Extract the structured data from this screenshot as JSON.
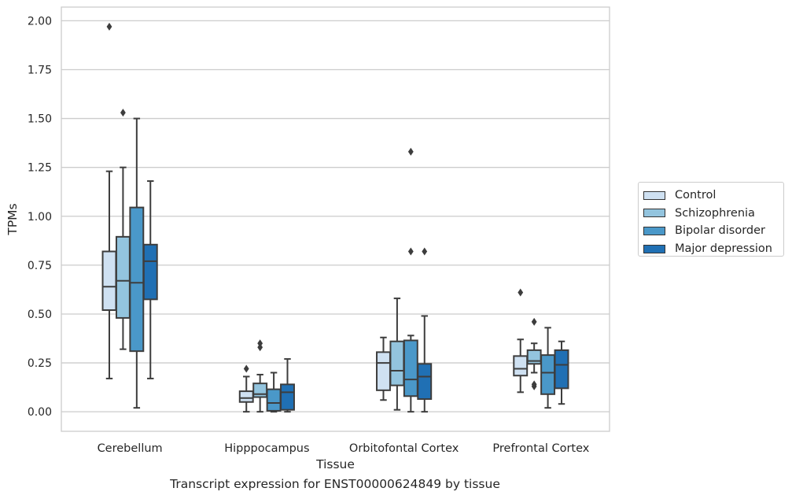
{
  "chart_data": {
    "type": "box",
    "xlabel": "Tissue",
    "ylabel": "TPMs",
    "ylim": [
      -0.1,
      2.07
    ],
    "yticks": [
      0.0,
      0.25,
      0.5,
      0.75,
      1.0,
      1.25,
      1.5,
      1.75,
      2.0
    ],
    "ytick_labels": [
      "0.00",
      "0.25",
      "0.50",
      "0.75",
      "1.00",
      "1.25",
      "1.50",
      "1.75",
      "2.00"
    ],
    "grid": "horizontal",
    "legend_position": "right",
    "categories": [
      "Cerebellum",
      "Hipppocampus",
      "Orbitofontal Cortex",
      "Prefrontal Cortex"
    ],
    "series": [
      {
        "name": "Control",
        "color": "#cfe1f2",
        "boxes": [
          {
            "whislo": 0.17,
            "q1": 0.52,
            "med": 0.64,
            "q3": 0.82,
            "whishi": 1.23,
            "fliers": [
              1.97
            ]
          },
          {
            "whislo": 0.0,
            "q1": 0.05,
            "med": 0.07,
            "q3": 0.105,
            "whishi": 0.18,
            "fliers": [
              0.22
            ]
          },
          {
            "whislo": 0.06,
            "q1": 0.11,
            "med": 0.25,
            "q3": 0.305,
            "whishi": 0.38,
            "fliers": []
          },
          {
            "whislo": 0.1,
            "q1": 0.185,
            "med": 0.22,
            "q3": 0.285,
            "whishi": 0.37,
            "fliers": [
              0.61
            ]
          }
        ]
      },
      {
        "name": "Schizophrenia",
        "color": "#93c4de",
        "boxes": [
          {
            "whislo": 0.32,
            "q1": 0.48,
            "med": 0.67,
            "q3": 0.895,
            "whishi": 1.25,
            "fliers": [
              1.53
            ]
          },
          {
            "whislo": 0.0,
            "q1": 0.075,
            "med": 0.09,
            "q3": 0.145,
            "whishi": 0.19,
            "fliers": [
              0.33,
              0.35
            ]
          },
          {
            "whislo": 0.01,
            "q1": 0.135,
            "med": 0.21,
            "q3": 0.36,
            "whishi": 0.58,
            "fliers": []
          },
          {
            "whislo": 0.2,
            "q1": 0.245,
            "med": 0.26,
            "q3": 0.315,
            "whishi": 0.35,
            "fliers": [
              0.13,
              0.14,
              0.46
            ]
          }
        ]
      },
      {
        "name": "Bipolar disorder",
        "color": "#4a98c9",
        "boxes": [
          {
            "whislo": 0.02,
            "q1": 0.31,
            "med": 0.66,
            "q3": 1.045,
            "whishi": 1.5,
            "fliers": []
          },
          {
            "whislo": 0.0,
            "q1": 0.005,
            "med": 0.045,
            "q3": 0.115,
            "whishi": 0.2,
            "fliers": []
          },
          {
            "whislo": 0.0,
            "q1": 0.08,
            "med": 0.165,
            "q3": 0.365,
            "whishi": 0.39,
            "fliers": [
              0.82,
              1.33
            ]
          },
          {
            "whislo": 0.02,
            "q1": 0.09,
            "med": 0.2,
            "q3": 0.29,
            "whishi": 0.43,
            "fliers": []
          }
        ]
      },
      {
        "name": "Major depression",
        "color": "#2070b4",
        "boxes": [
          {
            "whislo": 0.17,
            "q1": 0.575,
            "med": 0.77,
            "q3": 0.855,
            "whishi": 1.18,
            "fliers": []
          },
          {
            "whislo": 0.0,
            "q1": 0.01,
            "med": 0.1,
            "q3": 0.14,
            "whishi": 0.27,
            "fliers": []
          },
          {
            "whislo": 0.0,
            "q1": 0.065,
            "med": 0.18,
            "q3": 0.245,
            "whishi": 0.49,
            "fliers": [
              0.82
            ]
          },
          {
            "whislo": 0.04,
            "q1": 0.12,
            "med": 0.24,
            "q3": 0.315,
            "whishi": 0.36,
            "fliers": []
          }
        ]
      }
    ]
  },
  "caption": "Transcript expression for ENST00000624849 by tissue"
}
